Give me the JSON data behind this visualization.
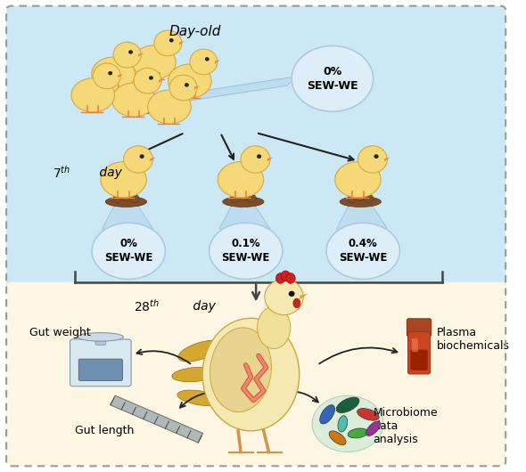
{
  "bg_top_color": "#cce8f4",
  "bg_bottom_color": "#fdf6e3",
  "border_color": "#999999",
  "circle_color": "#ddeef8",
  "circle_border": "#aaccdd",
  "circle_labels_top": "0%\nSEW-WE",
  "circle_labels_bottom": [
    "0%\nSEW-WE",
    "0.1%\nSEW-WE",
    "0.4%\nSEW-WE"
  ],
  "gut_weight_label": "Gut weight",
  "gut_length_label": "Gut length",
  "plasma_label": "Plasma\nbiochemicals",
  "microbiome_label": "Microbiome\ndata\nanalysis",
  "chick_body_color": "#f5d878",
  "chick_body_dark": "#d4aa40",
  "chick_beak_color": "#e8834a",
  "chick_eye_color": "#222222",
  "feed_color": "#7B4F2E",
  "feed_dark": "#5a3518",
  "rooster_body": "#f5e8b0",
  "rooster_wing": "#e8d490",
  "rooster_tail": "#d4a830",
  "rooster_comb": "#cc2222",
  "rooster_leg": "#d4934a",
  "gut_color1": "#cc5544",
  "gut_color2": "#ee8866",
  "scale_base": "#b0c4d8",
  "scale_screen": "#7090b0",
  "blood_tube": "#cc3322",
  "blood_cap": "#773311",
  "ruler_color": "#b0b8b8",
  "microbiome_colors": [
    "#1a5e3a",
    "#cc3333",
    "#3366bb",
    "#44aa44",
    "#cc7711",
    "#993399",
    "#55bbaa"
  ]
}
